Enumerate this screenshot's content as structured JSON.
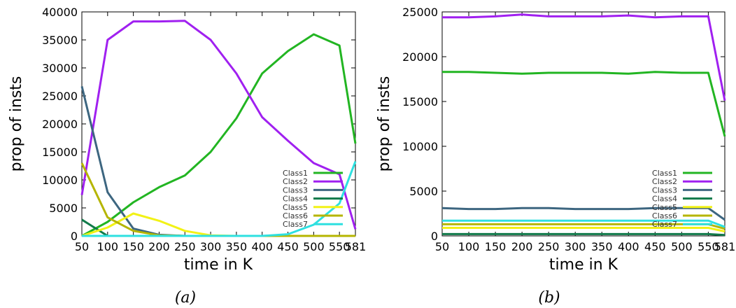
{
  "colors": {
    "Class1": "#22b522",
    "Class2": "#a020f0",
    "Class3": "#3d6680",
    "Class4": "#117a4a",
    "Class5": "#f2f216",
    "Class6": "#b5b500",
    "Class7": "#2ee0e0"
  },
  "chart_data": [
    {
      "type": "line",
      "caption": "(a)",
      "title": "",
      "xlabel": "time in K",
      "ylabel": "prop of insts",
      "x": [
        50,
        100,
        150,
        200,
        250,
        300,
        350,
        400,
        450,
        500,
        550,
        581
      ],
      "x_tick_labels": [
        "50",
        "100",
        "150",
        "200",
        "250",
        "300",
        "350",
        "400",
        "450",
        "500",
        "550",
        "581"
      ],
      "y_ticks": [
        0,
        5000,
        10000,
        15000,
        20000,
        25000,
        30000,
        35000,
        40000
      ],
      "y_tick_labels": [
        "0",
        "5000",
        "10000",
        "15000",
        "20000",
        "25000",
        "30000",
        "35000",
        "40000"
      ],
      "ylim": [
        0,
        40000
      ],
      "legend_position": "bottom-right",
      "grid": false,
      "series": [
        {
          "name": "Class1",
          "values": [
            0,
            2500,
            6000,
            8700,
            10800,
            15000,
            21000,
            29000,
            33000,
            36000,
            34000,
            16500
          ]
        },
        {
          "name": "Class2",
          "values": [
            7300,
            35000,
            38300,
            38300,
            38400,
            35000,
            29000,
            21200,
            17000,
            13000,
            11000,
            1200
          ]
        },
        {
          "name": "Class3",
          "values": [
            26700,
            7800,
            1300,
            200,
            0,
            0,
            0,
            0,
            0,
            0,
            0,
            0
          ]
        },
        {
          "name": "Class4",
          "values": [
            2900,
            0,
            0,
            0,
            0,
            0,
            0,
            0,
            0,
            0,
            0,
            0
          ]
        },
        {
          "name": "Class5",
          "values": [
            0,
            1500,
            4000,
            2700,
            900,
            100,
            0,
            0,
            0,
            0,
            0,
            0
          ]
        },
        {
          "name": "Class6",
          "values": [
            13000,
            3300,
            900,
            100,
            0,
            0,
            0,
            0,
            0,
            0,
            0,
            0
          ]
        },
        {
          "name": "Class7",
          "values": [
            0,
            0,
            0,
            0,
            0,
            0,
            0,
            0,
            300,
            2000,
            5800,
            13300
          ]
        }
      ]
    },
    {
      "type": "line",
      "caption": "(b)",
      "title": "",
      "xlabel": "time in K",
      "ylabel": "prop of insts",
      "x": [
        50,
        100,
        150,
        200,
        250,
        300,
        350,
        400,
        450,
        500,
        550,
        581
      ],
      "x_tick_labels": [
        "50",
        "100",
        "150",
        "200",
        "250",
        "300",
        "350",
        "400",
        "450",
        "500",
        "550",
        "581"
      ],
      "y_ticks": [
        0,
        5000,
        10000,
        15000,
        20000,
        25000
      ],
      "y_tick_labels": [
        "0",
        "5000",
        "10000",
        "15000",
        "20000",
        "25000"
      ],
      "ylim": [
        0,
        25000
      ],
      "legend_position": "bottom-right",
      "grid": false,
      "series": [
        {
          "name": "Class1",
          "values": [
            18300,
            18300,
            18200,
            18100,
            18200,
            18200,
            18200,
            18100,
            18300,
            18200,
            18200,
            11100
          ]
        },
        {
          "name": "Class2",
          "values": [
            24400,
            24400,
            24500,
            24700,
            24500,
            24500,
            24500,
            24600,
            24400,
            24500,
            24500,
            15100
          ]
        },
        {
          "name": "Class3",
          "values": [
            3100,
            3000,
            3000,
            3100,
            3100,
            3000,
            3000,
            3000,
            3100,
            3100,
            3100,
            1800
          ]
        },
        {
          "name": "Class4",
          "values": [
            200,
            200,
            200,
            200,
            200,
            200,
            200,
            200,
            200,
            200,
            200,
            100
          ]
        },
        {
          "name": "Class5",
          "values": [
            900,
            900,
            900,
            900,
            900,
            900,
            900,
            900,
            900,
            900,
            900,
            500
          ]
        },
        {
          "name": "Class6",
          "values": [
            1300,
            1300,
            1300,
            1300,
            1300,
            1300,
            1300,
            1300,
            1300,
            1300,
            1300,
            800
          ]
        },
        {
          "name": "Class7",
          "values": [
            1700,
            1700,
            1700,
            1700,
            1700,
            1700,
            1700,
            1700,
            1700,
            1700,
            1700,
            1000
          ]
        }
      ]
    }
  ]
}
